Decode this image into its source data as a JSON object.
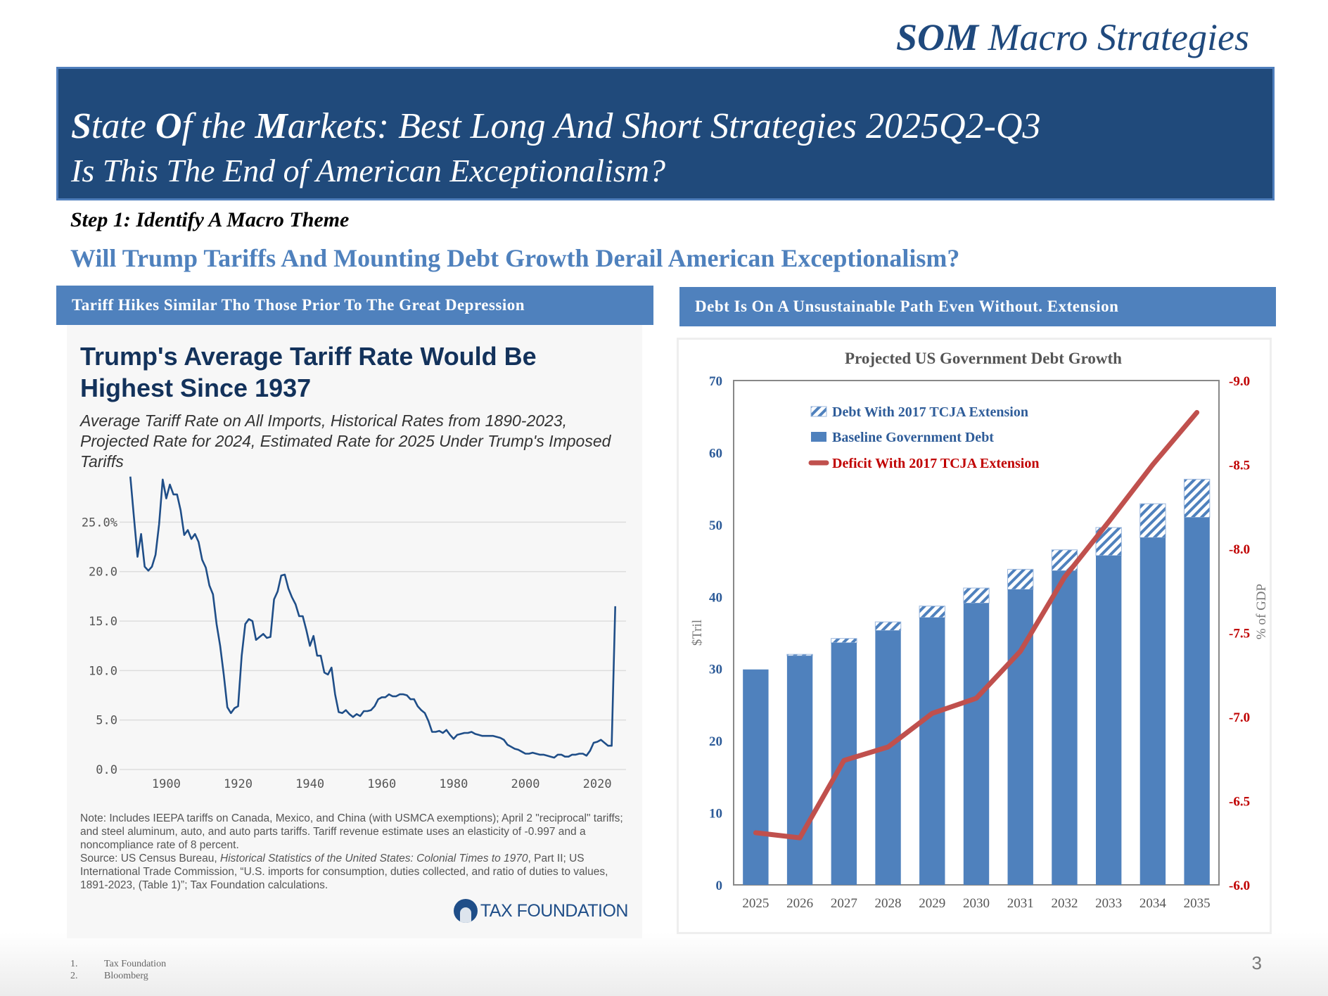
{
  "brand": {
    "bold": "SOM",
    "rest": " Macro Strategies"
  },
  "banner": {
    "title_parts": [
      {
        "text": "S",
        "bold": true
      },
      {
        "text": "tate ",
        "bold": false
      },
      {
        "text": "O",
        "bold": true
      },
      {
        "text": "f the ",
        "bold": false
      },
      {
        "text": "M",
        "bold": true
      },
      {
        "text": "arkets: Best Long And Short Strategies 2025Q2-Q3",
        "bold": false
      }
    ],
    "subtitle": "Is This The End of American Exceptionalism?"
  },
  "step_label": "Step 1: Identify A Macro Theme",
  "question": "Will Trump Tariffs And Mounting Debt Growth Derail American Exceptionalism?",
  "left_section": {
    "header": "Tariff Hikes Similar Tho Those Prior To The Great Depression",
    "title": "Trump's Average Tariff Rate Would Be Highest Since 1937",
    "subtitle": "Average Tariff Rate on All Imports, Historical Rates from 1890-2023, Projected Rate for 2024, Estimated Rate for 2025 Under Trump's Imposed Tariffs",
    "note": "Note: Includes IEEPA tariffs on Canada, Mexico, and China (with USMCA exemptions); April 2 \"reciprocal\" tariffs; and steel aluminum, auto, and auto parts tariffs. Tariff revenue estimate uses an elasticity of -0.997 and a noncompliance rate of 8 percent.",
    "source_prefix": "Source: US Census Bureau, ",
    "source_italic": "Historical Statistics of the United States: Colonial Times to 1970",
    "source_suffix": ", Part II; US International Trade Commission, “U.S. imports for consumption, duties collected, and ratio of duties to values, 1891-2023, (Table 1)”; Tax Foundation calculations.",
    "logo_text": "TAX FOUNDATION"
  },
  "right_section": {
    "header": "Debt Is On A Unsustainable Path Even Without. Extension"
  },
  "chart_data": [
    {
      "type": "line",
      "title": "Trump's Average Tariff Rate Would Be Highest Since 1937",
      "xlabel": "",
      "ylabel": "",
      "x_ticks": [
        "1900",
        "1920",
        "1940",
        "1960",
        "1980",
        "2000",
        "2020"
      ],
      "y_ticks": [
        "0.0",
        "5.0",
        "10.0",
        "15.0",
        "20.0",
        "25.0%"
      ],
      "xlim": [
        1887,
        2028
      ],
      "ylim": [
        0,
        30
      ],
      "grid": true,
      "color": "#1f4e88",
      "series": [
        {
          "name": "Average Tariff Rate",
          "x": [
            1890,
            1891,
            1892,
            1893,
            1894,
            1895,
            1896,
            1897,
            1898,
            1899,
            1900,
            1901,
            1902,
            1903,
            1904,
            1905,
            1906,
            1907,
            1908,
            1909,
            1910,
            1911,
            1912,
            1913,
            1914,
            1915,
            1916,
            1917,
            1918,
            1919,
            1920,
            1921,
            1922,
            1923,
            1924,
            1925,
            1926,
            1927,
            1928,
            1929,
            1930,
            1931,
            1932,
            1933,
            1934,
            1935,
            1936,
            1937,
            1938,
            1939,
            1940,
            1941,
            1942,
            1943,
            1944,
            1945,
            1946,
            1947,
            1948,
            1949,
            1950,
            1951,
            1952,
            1953,
            1954,
            1955,
            1956,
            1957,
            1958,
            1959,
            1960,
            1961,
            1962,
            1963,
            1964,
            1965,
            1966,
            1967,
            1968,
            1969,
            1970,
            1971,
            1972,
            1973,
            1974,
            1975,
            1976,
            1977,
            1978,
            1979,
            1980,
            1981,
            1982,
            1983,
            1984,
            1985,
            1986,
            1987,
            1988,
            1989,
            1990,
            1991,
            1992,
            1993,
            1994,
            1995,
            1996,
            1997,
            1998,
            1999,
            2000,
            2001,
            2002,
            2003,
            2004,
            2005,
            2006,
            2007,
            2008,
            2009,
            2010,
            2011,
            2012,
            2013,
            2014,
            2015,
            2016,
            2017,
            2018,
            2019,
            2020,
            2021,
            2022,
            2023,
            2024,
            2025
          ],
          "y": [
            29.6,
            25.5,
            21.5,
            23.8,
            20.5,
            20.1,
            20.5,
            21.7,
            24.8,
            29.3,
            27.4,
            28.8,
            27.8,
            27.8,
            26.2,
            23.7,
            24.2,
            23.3,
            23.8,
            23.0,
            21.2,
            20.4,
            18.6,
            17.7,
            14.7,
            12.5,
            9.6,
            6.3,
            5.7,
            6.2,
            6.4,
            11.5,
            14.7,
            15.2,
            15.0,
            13.1,
            13.4,
            13.7,
            13.3,
            13.4,
            17.2,
            18.0,
            19.6,
            19.7,
            18.3,
            17.4,
            16.7,
            15.5,
            15.5,
            14.1,
            12.5,
            13.5,
            11.5,
            11.5,
            9.8,
            9.6,
            10.3,
            7.6,
            5.8,
            5.7,
            6.0,
            5.6,
            5.3,
            5.6,
            5.4,
            5.9,
            5.9,
            6.0,
            6.4,
            7.1,
            7.3,
            7.3,
            7.6,
            7.4,
            7.4,
            7.6,
            7.6,
            7.5,
            7.1,
            7.1,
            6.4,
            6.0,
            5.7,
            4.9,
            3.8,
            3.8,
            3.9,
            3.7,
            4.0,
            3.5,
            3.1,
            3.5,
            3.6,
            3.7,
            3.7,
            3.8,
            3.6,
            3.5,
            3.4,
            3.4,
            3.4,
            3.4,
            3.3,
            3.2,
            3.0,
            2.5,
            2.3,
            2.1,
            2.0,
            1.8,
            1.6,
            1.6,
            1.7,
            1.6,
            1.5,
            1.5,
            1.4,
            1.3,
            1.2,
            1.5,
            1.5,
            1.3,
            1.3,
            1.5,
            1.5,
            1.6,
            1.6,
            1.4,
            1.9,
            2.7,
            2.8,
            3.0,
            2.7,
            2.4,
            2.4,
            16.5
          ]
        }
      ]
    },
    {
      "type": "bar",
      "title": "Projected US Government Debt Growth",
      "xlabel": "",
      "ylabel": "$Tril",
      "y2label": "% of GDP",
      "categories": [
        "2025",
        "2026",
        "2027",
        "2028",
        "2029",
        "2030",
        "2031",
        "2032",
        "2033",
        "2034",
        "2035"
      ],
      "ylim": [
        0,
        70
      ],
      "y_ticks": [
        "0",
        "10",
        "20",
        "30",
        "40",
        "50",
        "60",
        "70"
      ],
      "y2lim": [
        -6.0,
        -9.0
      ],
      "y2_ticks": [
        "-6.0",
        "-6.5",
        "-7.0",
        "-7.5",
        "-8.0",
        "-8.5",
        "-9.0"
      ],
      "grid": false,
      "legend_position": "top-left",
      "series": [
        {
          "name": "Baseline Government Debt",
          "kind": "bar",
          "color": "#4f81bd",
          "values": [
            29.9,
            31.8,
            33.6,
            35.3,
            37.1,
            39.1,
            41.0,
            43.6,
            45.7,
            48.2,
            51.0
          ]
        },
        {
          "name": "Debt With 2017 TCJA Extension",
          "kind": "bar-hatched-stacked-top",
          "color": "#4f81bd",
          "values": [
            29.9,
            32.0,
            34.2,
            36.5,
            38.7,
            41.2,
            43.8,
            46.5,
            49.6,
            52.9,
            56.3
          ]
        },
        {
          "name": "Deficit With 2017 TCJA Extension",
          "kind": "line",
          "axis": "right",
          "color": "#c0504d",
          "values": [
            -6.31,
            -6.28,
            -6.74,
            -6.82,
            -7.02,
            -7.11,
            -7.39,
            -7.83,
            -8.16,
            -8.5,
            -8.81
          ]
        }
      ]
    }
  ],
  "footnotes": [
    {
      "num": "1.",
      "text": "Tax Foundation"
    },
    {
      "num": "2.",
      "text": "Bloomberg"
    }
  ],
  "page_number": "3"
}
